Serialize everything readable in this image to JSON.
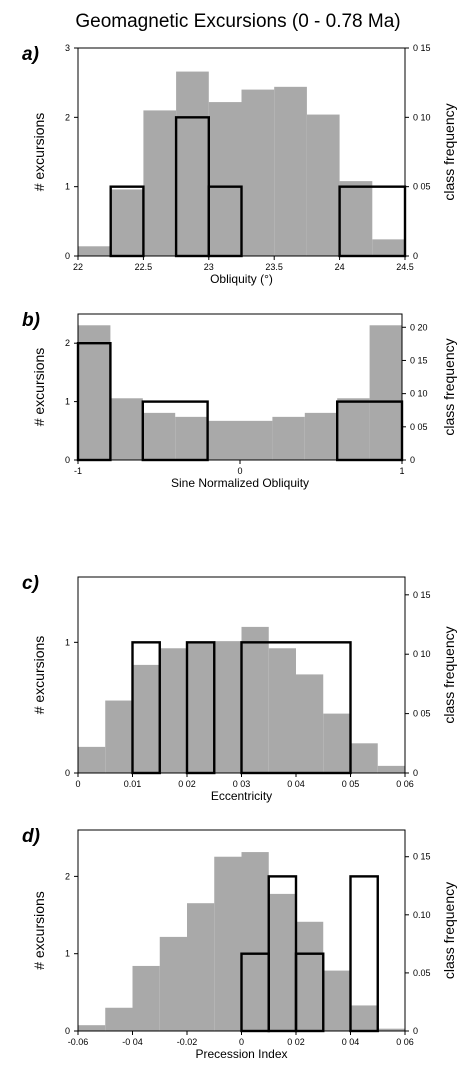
{
  "title": "Geomagnetic Excursions (0 - 0.78 Ma)",
  "colors": {
    "histogram_fill": "#a9a9a9",
    "outline": "#000000"
  },
  "chart_data": [
    {
      "type": "bar",
      "panel_label": "a)",
      "xlabel": "Obliquity (°)",
      "ylabel_left": "# excursions",
      "ylabel_right": "class frequency",
      "xlim": [
        22,
        24.5
      ],
      "ylim_left": [
        0,
        3
      ],
      "ylim_right": [
        0,
        0.15
      ],
      "x_ticks": [
        22,
        22.5,
        23,
        23.5,
        24,
        24.5
      ],
      "x_tick_labels": [
        "22",
        "22.5",
        "23",
        "23.5",
        "24",
        "24.5"
      ],
      "y_left_ticks": [
        0,
        1,
        2,
        3
      ],
      "y_left_tick_labels": [
        "0",
        "1",
        "2",
        "3"
      ],
      "y_right_ticks": [
        0,
        0.05,
        0.1,
        0.15
      ],
      "y_right_tick_labels": [
        "0",
        "0 05",
        "0 10",
        "0 15"
      ],
      "series": [
        {
          "axis": "right",
          "style": "filled",
          "bins": [
            [
              22,
              22.25
            ],
            [
              22.25,
              22.5
            ],
            [
              22.5,
              22.75
            ],
            [
              22.75,
              23
            ],
            [
              23,
              23.25
            ],
            [
              23.25,
              23.5
            ],
            [
              23.5,
              23.75
            ],
            [
              23.75,
              24
            ],
            [
              24,
              24.25
            ],
            [
              24.25,
              24.5
            ]
          ],
          "values": [
            0.007,
            0.048,
            0.105,
            0.133,
            0.111,
            0.12,
            0.122,
            0.102,
            0.054,
            0.012
          ]
        },
        {
          "axis": "left",
          "style": "outline",
          "bins": [
            [
              22.25,
              22.5
            ],
            [
              22.5,
              22.75
            ],
            [
              22.75,
              23
            ],
            [
              23,
              23.25
            ],
            [
              23.25,
              24
            ],
            [
              24,
              24.5
            ]
          ],
          "values": [
            1,
            0,
            2,
            1,
            0,
            1
          ]
        }
      ]
    },
    {
      "type": "bar",
      "panel_label": "b)",
      "xlabel": "Sine Normalized Obliquity",
      "ylabel_left": "# excursions",
      "ylabel_right": "class frequency",
      "xlim": [
        -1,
        1
      ],
      "ylim_left": [
        0,
        2.5
      ],
      "ylim_right": [
        0,
        0.22
      ],
      "x_ticks": [
        -1,
        0,
        1
      ],
      "x_tick_labels": [
        "-1",
        "0",
        "1"
      ],
      "y_left_ticks": [
        0,
        1,
        2
      ],
      "y_left_tick_labels": [
        "0",
        "1",
        "2"
      ],
      "y_right_ticks": [
        0,
        0.05,
        0.1,
        0.15,
        0.2
      ],
      "y_right_tick_labels": [
        "0",
        "0 05",
        "0 10",
        "0 15",
        "0 20"
      ],
      "series": [
        {
          "axis": "right",
          "style": "filled",
          "bins": [
            [
              -1,
              -0.8
            ],
            [
              -0.8,
              -0.6
            ],
            [
              -0.6,
              -0.4
            ],
            [
              -0.4,
              -0.2
            ],
            [
              -0.2,
              0
            ],
            [
              0,
              0.2
            ],
            [
              0.2,
              0.4
            ],
            [
              0.4,
              0.6
            ],
            [
              0.6,
              0.8
            ],
            [
              0.8,
              1
            ]
          ],
          "values": [
            0.203,
            0.093,
            0.071,
            0.065,
            0.059,
            0.059,
            0.065,
            0.071,
            0.093,
            0.203
          ]
        },
        {
          "axis": "left",
          "style": "outline",
          "bins": [
            [
              -1,
              -0.8
            ],
            [
              -0.8,
              -0.6
            ],
            [
              -0.6,
              -0.2
            ],
            [
              -0.2,
              0.6
            ],
            [
              0.6,
              1
            ]
          ],
          "values": [
            2,
            0,
            1,
            0,
            1
          ]
        }
      ]
    },
    {
      "type": "bar",
      "panel_label": "c)",
      "xlabel": "Eccentricity",
      "ylabel_left": "# excursions",
      "ylabel_right": "class frequency",
      "xlim": [
        0,
        0.06
      ],
      "ylim_left": [
        0,
        1.5
      ],
      "ylim_right": [
        0,
        0.165
      ],
      "x_ticks": [
        0,
        0.01,
        0.02,
        0.03,
        0.04,
        0.05,
        0.06
      ],
      "x_tick_labels": [
        "0",
        "0.01",
        "0 02",
        "0 03",
        "0 04",
        "0 05",
        "0 06"
      ],
      "y_left_ticks": [
        0,
        1
      ],
      "y_left_tick_labels": [
        "0",
        "1"
      ],
      "y_right_ticks": [
        0,
        0.05,
        0.1,
        0.15
      ],
      "y_right_tick_labels": [
        "0",
        "0 05",
        "0 10",
        "0 15"
      ],
      "series": [
        {
          "axis": "right",
          "style": "filled",
          "bins": [
            [
              0,
              0.005
            ],
            [
              0.005,
              0.01
            ],
            [
              0.01,
              0.015
            ],
            [
              0.015,
              0.02
            ],
            [
              0.02,
              0.025
            ],
            [
              0.025,
              0.03
            ],
            [
              0.03,
              0.035
            ],
            [
              0.035,
              0.04
            ],
            [
              0.04,
              0.045
            ],
            [
              0.045,
              0.05
            ],
            [
              0.05,
              0.055
            ],
            [
              0.055,
              0.06
            ]
          ],
          "values": [
            0.022,
            0.061,
            0.091,
            0.105,
            0.109,
            0.111,
            0.123,
            0.105,
            0.083,
            0.05,
            0.025,
            0.006
          ]
        },
        {
          "axis": "left",
          "style": "outline",
          "bins": [
            [
              0.01,
              0.015
            ],
            [
              0.015,
              0.02
            ],
            [
              0.02,
              0.025
            ],
            [
              0.025,
              0.03
            ],
            [
              0.03,
              0.05
            ]
          ],
          "values": [
            1,
            0,
            1,
            0,
            1
          ]
        }
      ]
    },
    {
      "type": "bar",
      "panel_label": "d)",
      "xlabel": "Precession Index",
      "ylabel_left": "# excursions",
      "ylabel_right": "class frequency",
      "xlim": [
        -0.06,
        0.06
      ],
      "ylim_left": [
        0,
        2.6
      ],
      "ylim_right": [
        0,
        0.173
      ],
      "x_ticks": [
        -0.06,
        -0.04,
        -0.02,
        0,
        0.02,
        0.04,
        0.06
      ],
      "x_tick_labels": [
        "-0.06",
        "-0 04",
        "-0.02",
        "0",
        "0 02",
        "0 04",
        "0 06"
      ],
      "y_left_ticks": [
        0,
        1,
        2
      ],
      "y_left_tick_labels": [
        "0",
        "1",
        "2"
      ],
      "y_right_ticks": [
        0,
        0.05,
        0.1,
        0.15
      ],
      "y_right_tick_labels": [
        "0",
        "0.05",
        "0.10",
        "0 15"
      ],
      "series": [
        {
          "axis": "right",
          "style": "filled",
          "bins": [
            [
              -0.06,
              -0.05
            ],
            [
              -0.05,
              -0.04
            ],
            [
              -0.04,
              -0.03
            ],
            [
              -0.03,
              -0.02
            ],
            [
              -0.02,
              -0.01
            ],
            [
              -0.01,
              0
            ],
            [
              0,
              0.01
            ],
            [
              0.01,
              0.02
            ],
            [
              0.02,
              0.03
            ],
            [
              0.03,
              0.04
            ],
            [
              0.04,
              0.05
            ],
            [
              0.05,
              0.06
            ]
          ],
          "values": [
            0.005,
            0.02,
            0.056,
            0.081,
            0.11,
            0.15,
            0.154,
            0.118,
            0.094,
            0.052,
            0.022,
            0.002
          ]
        },
        {
          "axis": "left",
          "style": "outline",
          "bins": [
            [
              0,
              0.01
            ],
            [
              0.01,
              0.02
            ],
            [
              0.02,
              0.03
            ],
            [
              0.03,
              0.04
            ],
            [
              0.04,
              0.05
            ]
          ],
          "values": [
            1,
            2,
            1,
            0,
            2
          ]
        }
      ]
    }
  ]
}
